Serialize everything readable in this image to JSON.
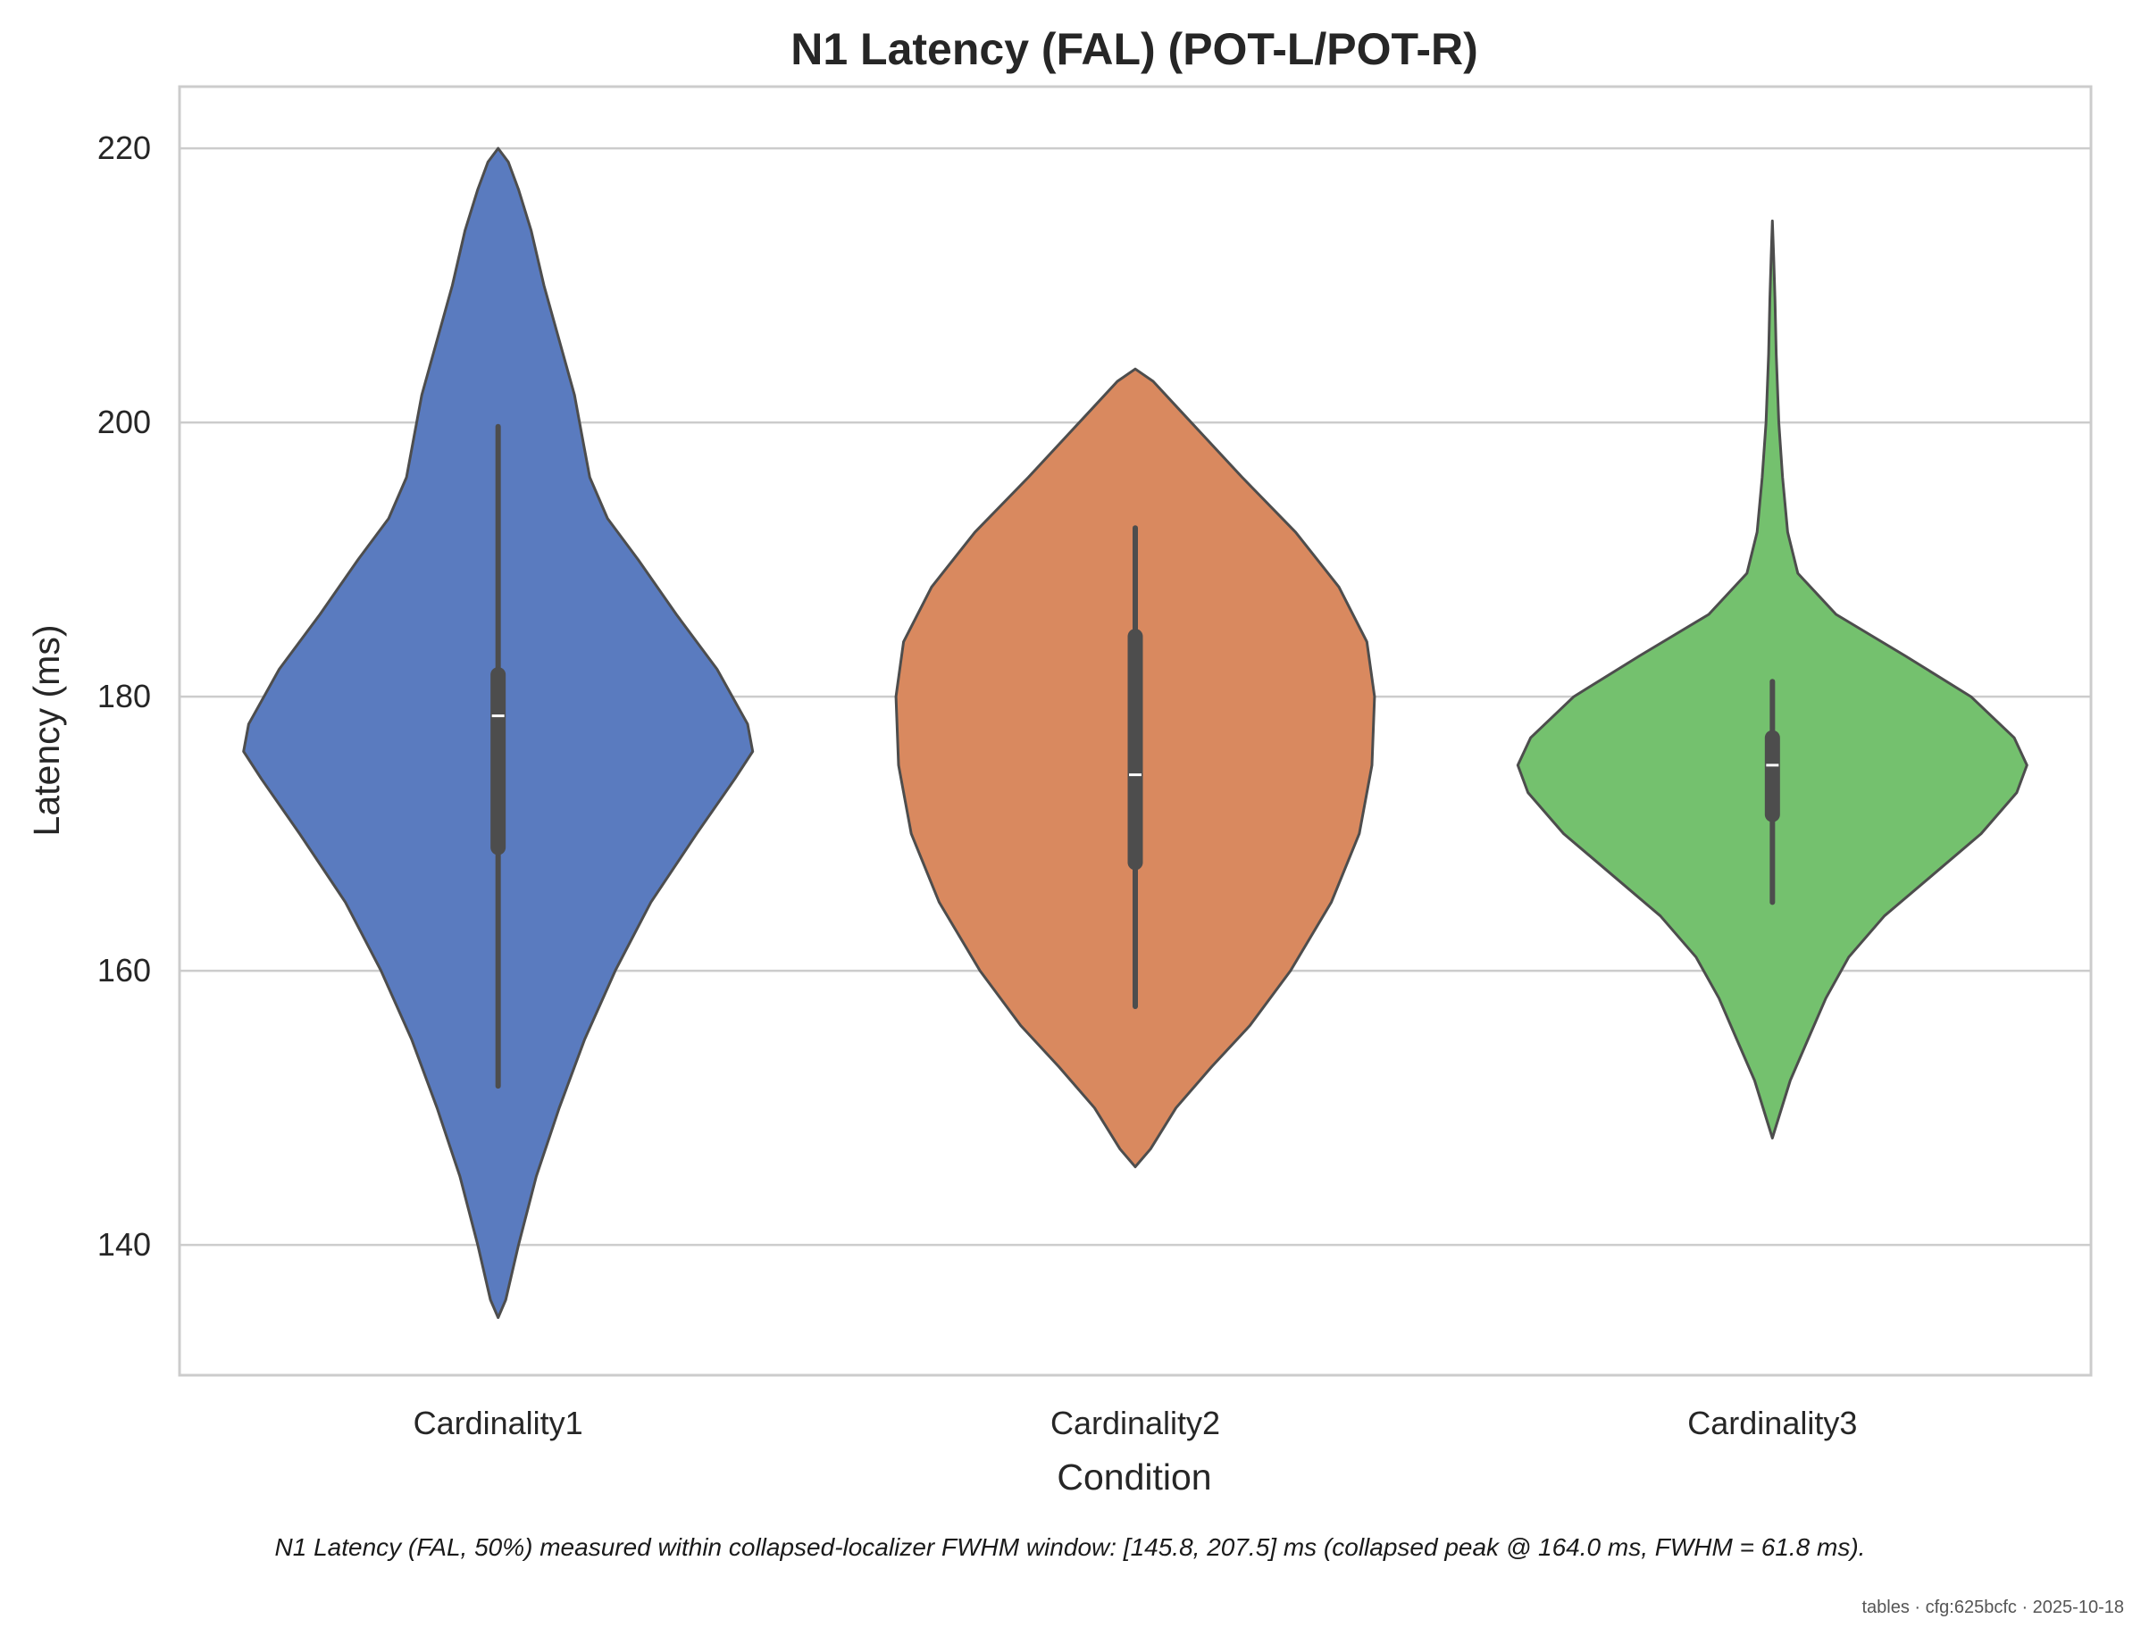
{
  "chart_data": {
    "type": "violin",
    "title": "N1 Latency (FAL) (POT-L/POT-R)",
    "xlabel": "Condition",
    "ylabel": "Latency (ms)",
    "ylim": [
      130.5,
      224.5
    ],
    "yticks": [
      140,
      160,
      180,
      200,
      220
    ],
    "grid": "horizontal",
    "categories": [
      "Cardinality1",
      "Cardinality2",
      "Cardinality3"
    ],
    "colors": [
      "#5a7bbf",
      "#d9895f",
      "#74c16e"
    ],
    "outline_color": "#4d4d4d",
    "violins": [
      {
        "category": "Cardinality1",
        "min": 134.7,
        "max": 220.0,
        "whisker": [
          151.6,
          199.7
        ],
        "q1": 169.0,
        "q3": 181.6,
        "median": 178.6,
        "density": [
          [
            134.7,
            0.0
          ],
          [
            136.0,
            0.03
          ],
          [
            140.0,
            0.08
          ],
          [
            145.0,
            0.15
          ],
          [
            150.0,
            0.24
          ],
          [
            155.0,
            0.34
          ],
          [
            160.0,
            0.46
          ],
          [
            165.0,
            0.6
          ],
          [
            170.0,
            0.78
          ],
          [
            174.0,
            0.93
          ],
          [
            176.0,
            1.0
          ],
          [
            178.0,
            0.98
          ],
          [
            182.0,
            0.86
          ],
          [
            186.0,
            0.7
          ],
          [
            190.0,
            0.55
          ],
          [
            193.0,
            0.43
          ],
          [
            196.0,
            0.36
          ],
          [
            199.0,
            0.33
          ],
          [
            202.0,
            0.3
          ],
          [
            206.0,
            0.24
          ],
          [
            210.0,
            0.18
          ],
          [
            214.0,
            0.13
          ],
          [
            217.0,
            0.08
          ],
          [
            219.0,
            0.04
          ],
          [
            220.0,
            0.0
          ]
        ]
      },
      {
        "category": "Cardinality2",
        "min": 145.7,
        "max": 203.9,
        "whisker": [
          157.4,
          192.3
        ],
        "q1": 167.9,
        "q3": 184.4,
        "median": 174.3,
        "density": [
          [
            145.7,
            0.0
          ],
          [
            147.0,
            0.06
          ],
          [
            150.0,
            0.16
          ],
          [
            153.0,
            0.3
          ],
          [
            156.0,
            0.45
          ],
          [
            160.0,
            0.61
          ],
          [
            165.0,
            0.77
          ],
          [
            170.0,
            0.88
          ],
          [
            175.0,
            0.93
          ],
          [
            180.0,
            0.94
          ],
          [
            184.0,
            0.91
          ],
          [
            188.0,
            0.8
          ],
          [
            192.0,
            0.63
          ],
          [
            196.0,
            0.42
          ],
          [
            199.0,
            0.27
          ],
          [
            201.0,
            0.17
          ],
          [
            203.0,
            0.07
          ],
          [
            203.9,
            0.0
          ]
        ]
      },
      {
        "category": "Cardinality3",
        "min": 147.8,
        "max": 214.7,
        "whisker": [
          165.0,
          181.1
        ],
        "q1": 171.4,
        "q3": 177.0,
        "median": 175.0,
        "density": [
          [
            147.8,
            0.0
          ],
          [
            149.0,
            0.02
          ],
          [
            152.0,
            0.07
          ],
          [
            155.0,
            0.14
          ],
          [
            158.0,
            0.21
          ],
          [
            161.0,
            0.3
          ],
          [
            164.0,
            0.44
          ],
          [
            167.0,
            0.63
          ],
          [
            170.0,
            0.82
          ],
          [
            173.0,
            0.96
          ],
          [
            175.0,
            1.0
          ],
          [
            177.0,
            0.95
          ],
          [
            180.0,
            0.78
          ],
          [
            183.0,
            0.52
          ],
          [
            186.0,
            0.25
          ],
          [
            189.0,
            0.1
          ],
          [
            192.0,
            0.06
          ],
          [
            196.0,
            0.04
          ],
          [
            200.0,
            0.025
          ],
          [
            205.0,
            0.015
          ],
          [
            209.0,
            0.01
          ],
          [
            212.0,
            0.005
          ],
          [
            214.7,
            0.0
          ]
        ]
      }
    ]
  },
  "footnote": "N1 Latency (FAL, 50%) measured within collapsed-localizer FWHM window: [145.8, 207.5] ms (collapsed peak @ 164.0 ms, FWHM = 61.8 ms).",
  "stamp": "tables · cfg:625bcfc · 2025-10-18"
}
